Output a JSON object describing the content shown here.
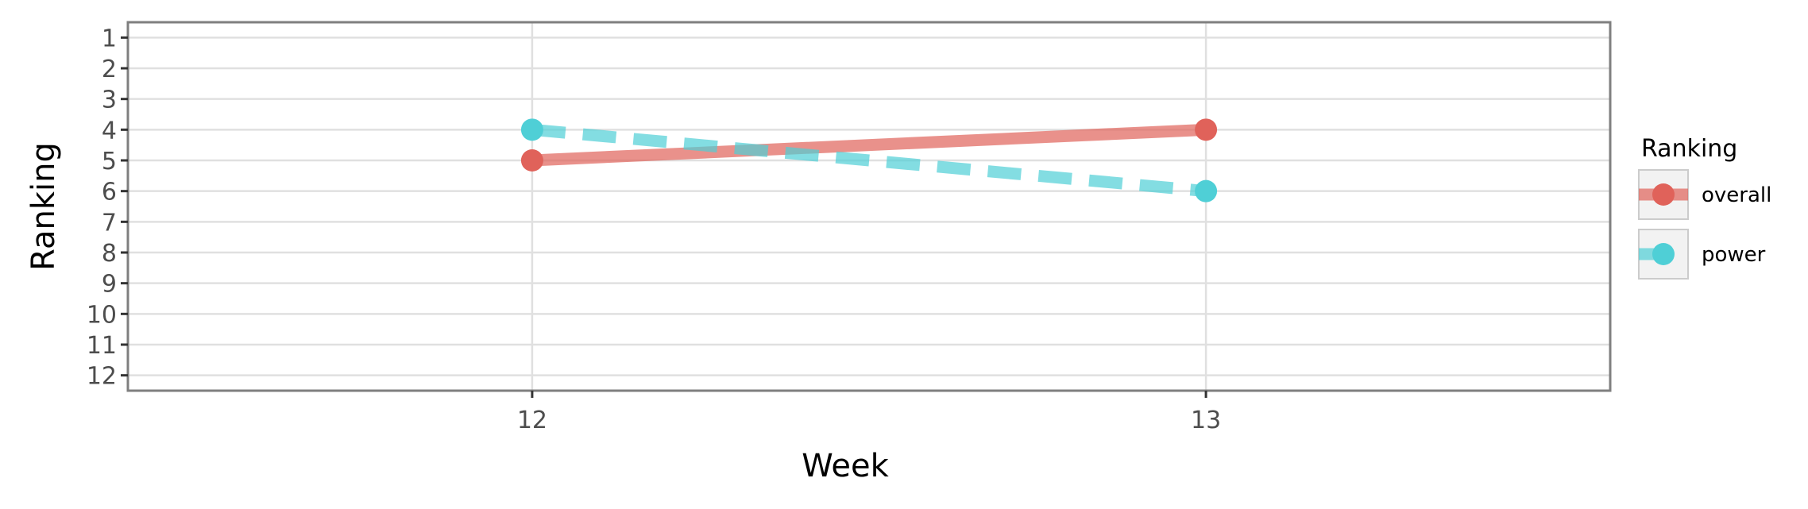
{
  "chart_data": {
    "type": "line",
    "title": "",
    "xlabel": "Week",
    "ylabel": "Ranking",
    "x": [
      12,
      13
    ],
    "xlim": [
      11.4,
      13.6
    ],
    "ylim": [
      12.5,
      0.5
    ],
    "y_reversed": true,
    "x_ticks": [
      "12",
      "13"
    ],
    "y_ticks": [
      "1",
      "2",
      "3",
      "4",
      "5",
      "6",
      "7",
      "8",
      "9",
      "10",
      "11",
      "12"
    ],
    "grid": true,
    "legend": {
      "title": "Ranking",
      "position": "right"
    },
    "series": [
      {
        "name": "overall",
        "values": [
          5,
          4
        ],
        "color": "#e0625a",
        "linestyle": "solid"
      },
      {
        "name": "power",
        "values": [
          4,
          6
        ],
        "color": "#4fcfd6",
        "linestyle": "dashed"
      }
    ]
  }
}
